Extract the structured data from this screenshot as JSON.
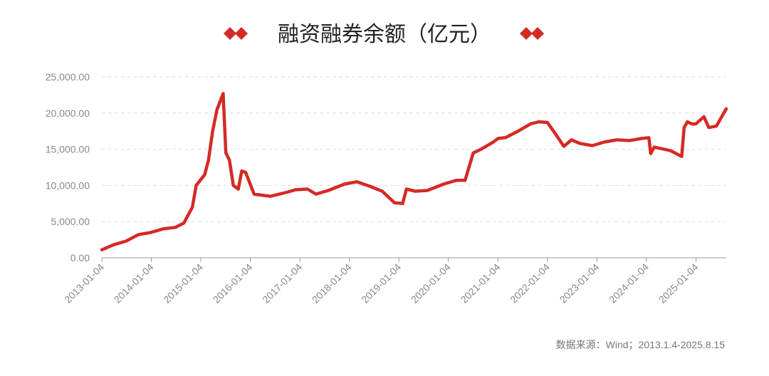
{
  "chart_data": {
    "type": "line",
    "title": "融资融券余额（亿元）",
    "note": "数据来源：Wind；2013.1.4-2025.8.15",
    "x": [
      "2013-01-04",
      "2013-04-01",
      "2013-07-01",
      "2013-10-01",
      "2014-01-02",
      "2014-04-01",
      "2014-07-01",
      "2014-09-01",
      "2014-11-03",
      "2014-12-01",
      "2015-02-02",
      "2015-03-02",
      "2015-04-01",
      "2015-05-04",
      "2015-06-18",
      "2015-07-08",
      "2015-08-03",
      "2015-09-01",
      "2015-10-08",
      "2015-11-02",
      "2015-12-01",
      "2016-02-01",
      "2016-06-01",
      "2016-10-10",
      "2016-12-01",
      "2017-03-01",
      "2017-05-02",
      "2017-08-01",
      "2017-12-01",
      "2018-03-01",
      "2018-06-01",
      "2018-09-03",
      "2018-12-03",
      "2019-02-01",
      "2019-03-01",
      "2019-05-06",
      "2019-08-01",
      "2019-12-02",
      "2020-03-02",
      "2020-05-06",
      "2020-07-06",
      "2020-09-01",
      "2020-12-01",
      "2021-01-04",
      "2021-03-01",
      "2021-06-01",
      "2021-09-01",
      "2021-11-01",
      "2022-01-04",
      "2022-03-01",
      "2022-05-05",
      "2022-07-01",
      "2022-09-01",
      "2022-12-01",
      "2023-03-01",
      "2023-06-01",
      "2023-09-01",
      "2023-12-01",
      "2024-01-22",
      "2024-02-05",
      "2024-03-01",
      "2024-07-01",
      "2024-09-20",
      "2024-10-08",
      "2024-11-01",
      "2024-12-02",
      "2025-01-02",
      "2025-03-03",
      "2025-04-08",
      "2025-06-03",
      "2025-08-15"
    ],
    "series": [
      {
        "name": "融资融券余额",
        "color": "#d42a26",
        "values": [
          1100,
          1800,
          2300,
          3200,
          3500,
          4000,
          4200,
          4800,
          7000,
          10000,
          11500,
          13500,
          17500,
          20500,
          22700,
          14500,
          13500,
          10000,
          9500,
          12000,
          11800,
          8800,
          8500,
          9100,
          9400,
          9500,
          8800,
          9300,
          10200,
          10500,
          9900,
          9200,
          7600,
          7500,
          9500,
          9200,
          9300,
          10200,
          10700,
          10700,
          14500,
          15000,
          16000,
          16500,
          16600,
          17500,
          18500,
          18800,
          18700,
          17200,
          15400,
          16300,
          15800,
          15500,
          16000,
          16300,
          16200,
          16500,
          16600,
          14400,
          15300,
          14800,
          14000,
          18000,
          18800,
          18500,
          18500,
          19500,
          18000,
          18200,
          20600
        ]
      }
    ],
    "xlim": [
      "2013-01-04",
      "2025-08-15"
    ],
    "xticks": [
      "2013-01-04",
      "2014-01-04",
      "2015-01-04",
      "2016-01-04",
      "2017-01-04",
      "2018-01-04",
      "2019-01-04",
      "2020-01-04",
      "2021-01-04",
      "2022-01-04",
      "2023-01-04",
      "2024-01-04",
      "2025-01-04"
    ],
    "ylim": [
      0,
      25000
    ],
    "yticks": [
      {
        "value": 0,
        "label": "0.00"
      },
      {
        "value": 5000,
        "label": "5,000.00"
      },
      {
        "value": 10000,
        "label": "10,000.00"
      },
      {
        "value": 15000,
        "label": "15,000.00"
      },
      {
        "value": 20000,
        "label": "20,000.00"
      },
      {
        "value": 25000,
        "label": "25,000.00"
      }
    ],
    "grid": true
  }
}
